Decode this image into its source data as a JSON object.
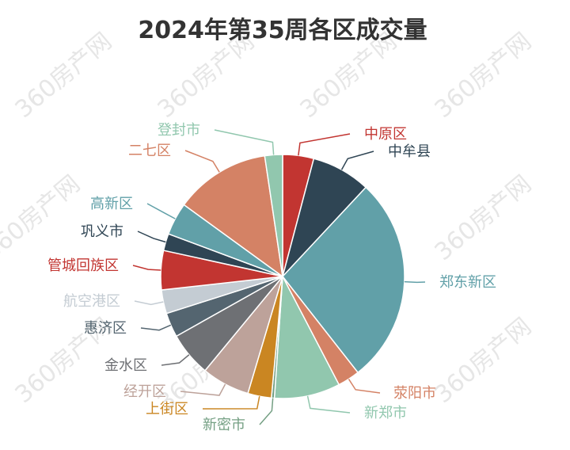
{
  "page": {
    "watermark": "360房产网"
  },
  "chart_data": {
    "type": "pie",
    "title": "2024年第35周各区成交量",
    "slices": [
      {
        "name": "中原区",
        "value": 4.2,
        "color": "#c23531"
      },
      {
        "name": "中牟县",
        "value": 8.0,
        "color": "#2f4554"
      },
      {
        "name": "郑东新区",
        "value": 28.0,
        "color": "#61a0a8"
      },
      {
        "name": "荥阳市",
        "value": 3.0,
        "color": "#d48265"
      },
      {
        "name": "新郑市",
        "value": 8.9,
        "color": "#91c7ae"
      },
      {
        "name": "新密市",
        "value": 0.4,
        "color": "#749f83"
      },
      {
        "name": "上街区",
        "value": 3.2,
        "color": "#ca8622"
      },
      {
        "name": "经开区",
        "value": 6.5,
        "color": "#bda29a"
      },
      {
        "name": "金水区",
        "value": 6.0,
        "color": "#6e7074"
      },
      {
        "name": "惠济区",
        "value": 3.3,
        "color": "#546570"
      },
      {
        "name": "航空港区",
        "value": 3.2,
        "color": "#c4ccd3"
      },
      {
        "name": "管城回族区",
        "value": 5.3,
        "color": "#c23531"
      },
      {
        "name": "巩义市",
        "value": 2.3,
        "color": "#2f4554"
      },
      {
        "name": "高新区",
        "value": 4.4,
        "color": "#61a0a8"
      },
      {
        "name": "二七区",
        "value": 12.9,
        "color": "#d48265"
      },
      {
        "name": "登封市",
        "value": 2.4,
        "color": "#91c7ae"
      }
    ]
  }
}
